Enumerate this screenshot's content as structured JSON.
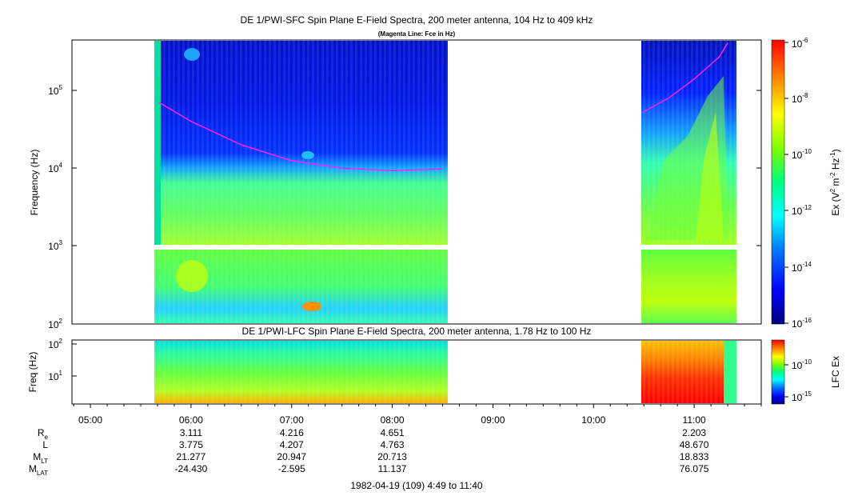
{
  "chart_data": [
    {
      "type": "heatmap",
      "title": "DE 1/PWI-SFC  Spin Plane E-Field Spectra, 200 meter antenna, 104 Hz to 409 kHz",
      "subtitle": "(Magenta Line: Fce in Hz)",
      "ylabel": "Frequency (Hz)",
      "yscale": "log",
      "ylim": [
        100,
        409000
      ],
      "ytick_labels": [
        {
          "base": "10",
          "exp": "2"
        },
        {
          "base": "10",
          "exp": "3"
        },
        {
          "base": "10",
          "exp": "4"
        },
        {
          "base": "10",
          "exp": "5"
        }
      ],
      "xlim": [
        "04:49",
        "11:40"
      ],
      "data_coverage": [
        [
          "05:40",
          "08:32"
        ],
        [
          "10:28",
          "11:21"
        ]
      ],
      "colorbar": {
        "label_main": "Ex (V",
        "label_parts": [
          "2",
          " m",
          "-2",
          " Hz",
          "-1",
          ")"
        ],
        "scale": "log",
        "range": [
          1e-16,
          1e-06
        ],
        "tick_labels": [
          {
            "base": "10",
            "exp": "-6"
          },
          {
            "base": "10",
            "exp": "-8"
          },
          {
            "base": "10",
            "exp": "-10"
          },
          {
            "base": "10",
            "exp": "-12"
          },
          {
            "base": "10",
            "exp": "-14"
          },
          {
            "base": "10",
            "exp": "-16"
          }
        ]
      },
      "fce_line": {
        "color": "#ff22ff",
        "segments": [
          {
            "x": [
              "05:41",
              "06:00",
              "06:30",
              "07:00",
              "07:30",
              "08:00",
              "08:30"
            ],
            "y": [
              70000,
              40000,
              20000,
              12500,
              10000,
              9300,
              9800
            ]
          },
          {
            "x": [
              "10:29",
              "10:45",
              "11:00",
              "11:15",
              "11:20"
            ],
            "y": [
              52000,
              80000,
              140000,
              270000,
              409000
            ]
          }
        ]
      }
    },
    {
      "type": "heatmap",
      "title": "DE 1/PWI-LFC  Spin Plane E-Field Spectra, 200 meter antenna, 1.78 Hz to 100 Hz",
      "ylabel": "Freq (Hz)",
      "yscale": "log",
      "ylim": [
        1.78,
        100
      ],
      "ytick_labels": [
        {
          "base": "10",
          "exp": "1"
        },
        {
          "base": "10",
          "exp": "2"
        }
      ],
      "data_coverage": [
        [
          "05:40",
          "08:32"
        ],
        [
          "10:28",
          "11:21"
        ]
      ],
      "colorbar": {
        "label": "LFC Ex",
        "scale": "log",
        "tick_labels": [
          {
            "base": "10",
            "exp": "-10"
          },
          {
            "base": "10",
            "exp": "-15"
          }
        ]
      }
    }
  ],
  "xaxis": {
    "ticks": [
      "05:00",
      "06:00",
      "07:00",
      "08:00",
      "09:00",
      "10:00",
      "11:00"
    ],
    "ephemeris": [
      {
        "name": "R",
        "sub": "e",
        "values": [
          "3.111",
          "4.216",
          "4.651",
          "",
          "",
          "2.203"
        ]
      },
      {
        "name": "L",
        "sub": "",
        "values": [
          "3.775",
          "4.207",
          "4.763",
          "",
          "",
          "48.670"
        ]
      },
      {
        "name": "M",
        "sub": "LT",
        "values": [
          "21.277",
          "20.947",
          "20.713",
          "",
          "",
          "18.833"
        ]
      },
      {
        "name": "M",
        "sub": "LAT",
        "values": [
          "-24.430",
          "-2.595",
          "11.137",
          "",
          "",
          "76.075"
        ]
      }
    ],
    "footer": "1982-04-19 (109) 4:49 to 11:40"
  },
  "colors": {
    "colormap": [
      "#000080",
      "#0000ff",
      "#0080ff",
      "#00ffff",
      "#00ff80",
      "#80ff00",
      "#ffff00",
      "#ff8000",
      "#ff0000"
    ]
  }
}
